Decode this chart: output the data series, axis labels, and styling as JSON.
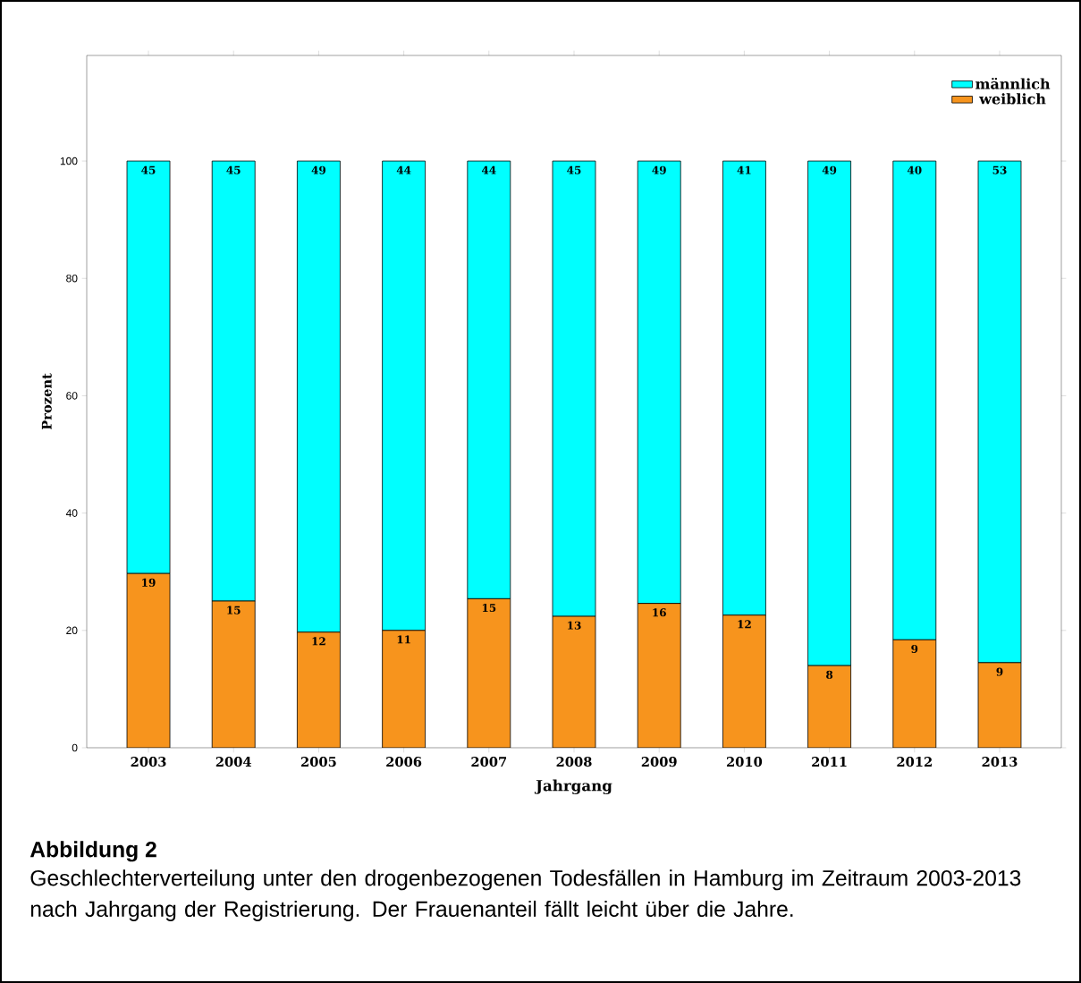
{
  "chart_data": {
    "type": "bar",
    "stacked": true,
    "title": "Abbildung 2",
    "subtitle": "Geschlechterverteilung unter den drogenbezogenen Todesfällen in Hamburg im Zeitraum 2003-2013 nach Jahrgang der Registrierung. Der Frauenanteil fällt leicht über die Jahre.",
    "xlabel": "Jahrgang",
    "ylabel": "Prozent",
    "categories": [
      "2003",
      "2004",
      "2005",
      "2006",
      "2007",
      "2008",
      "2009",
      "2010",
      "2011",
      "2012",
      "2013"
    ],
    "series": [
      {
        "name": "weiblich",
        "color": "#f7941d",
        "values": [
          29.7,
          25.0,
          19.7,
          20.0,
          25.4,
          22.4,
          24.6,
          22.6,
          14.0,
          18.4,
          14.5
        ]
      },
      {
        "name": "männlich",
        "color": "#00ffff",
        "values": [
          70.3,
          75.0,
          80.3,
          80.0,
          74.6,
          77.6,
          75.4,
          77.4,
          86.0,
          81.6,
          85.5
        ]
      }
    ],
    "annotations": [
      {
        "text": "19",
        "x": "2003",
        "y": 29.7
      },
      {
        "text": "15",
        "x": "2004",
        "y": 25.0
      },
      {
        "text": "12",
        "x": "2005",
        "y": 19.7
      },
      {
        "text": "11",
        "x": "2006",
        "y": 20.0
      },
      {
        "text": "15",
        "x": "2007",
        "y": 25.4
      },
      {
        "text": "13",
        "x": "2008",
        "y": 22.4
      },
      {
        "text": "16",
        "x": "2009",
        "y": 24.6
      },
      {
        "text": "12",
        "x": "2010",
        "y": 22.6
      },
      {
        "text": "8",
        "x": "2011",
        "y": 14.0
      },
      {
        "text": "9",
        "x": "2012",
        "y": 18.4
      },
      {
        "text": "9",
        "x": "2013",
        "y": 14.5
      },
      {
        "text": "45",
        "x": "2003",
        "y": 100
      },
      {
        "text": "45",
        "x": "2004",
        "y": 100
      },
      {
        "text": "49",
        "x": "2005",
        "y": 100
      },
      {
        "text": "44",
        "x": "2006",
        "y": 100
      },
      {
        "text": "44",
        "x": "2007",
        "y": 100
      },
      {
        "text": "45",
        "x": "2008",
        "y": 100
      },
      {
        "text": "49",
        "x": "2009",
        "y": 100
      },
      {
        "text": "41",
        "x": "2010",
        "y": 100
      },
      {
        "text": "49",
        "x": "2011",
        "y": 100
      },
      {
        "text": "40",
        "x": "2012",
        "y": 100
      },
      {
        "text": "53",
        "x": "2013",
        "y": 100
      }
    ],
    "ylim": [
      0,
      118
    ],
    "yticks": [
      0,
      20,
      40,
      60,
      80,
      100
    ],
    "legend": "top right",
    "grid": false
  }
}
